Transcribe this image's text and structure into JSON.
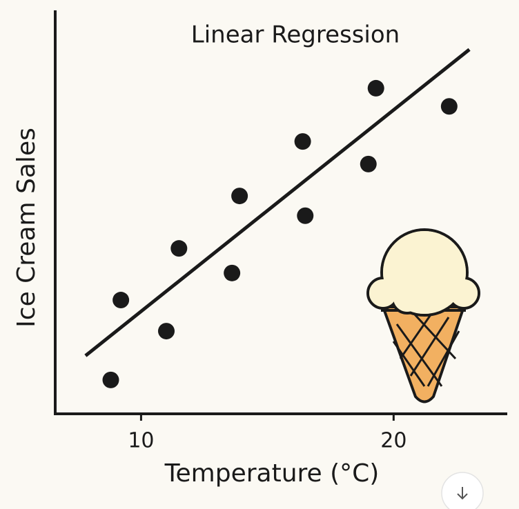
{
  "chart_data": {
    "type": "scatter",
    "title": "Linear Regression",
    "x_label": "Temperature (°C)",
    "y_label": "Ice Cream Sales",
    "x": [
      8.8,
      9.2,
      11.0,
      11.5,
      13.6,
      13.9,
      16.4,
      16.5,
      19.0,
      19.3,
      22.2
    ],
    "values": [
      8.4,
      28.2,
      20.5,
      41.0,
      34.9,
      54.0,
      67.5,
      49.1,
      61.9,
      80.7,
      76.2
    ],
    "color": "#1a1a1a",
    "regression": {
      "x": [
        7.8,
        23.0
      ],
      "y": [
        14.4,
        90.3
      ],
      "color": "#1a1a1a"
    },
    "xlim": [
      6.6,
      24.5
    ],
    "xticks": [
      10,
      20
    ],
    "ylim": [
      0,
      100
    ]
  }
}
